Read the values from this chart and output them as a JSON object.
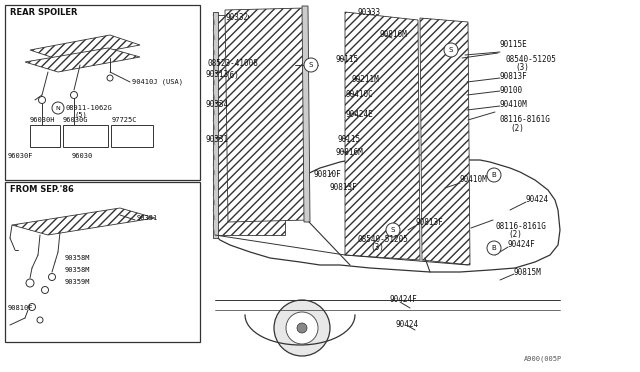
{
  "bg_color": "#ffffff",
  "line_color": "#333333",
  "diagram_number": "A900(005P",
  "box1_label": "REAR SPOILER",
  "box2_label": "FROM SEP.'86",
  "figsize": [
    6.4,
    3.72
  ],
  "dpi": 100
}
